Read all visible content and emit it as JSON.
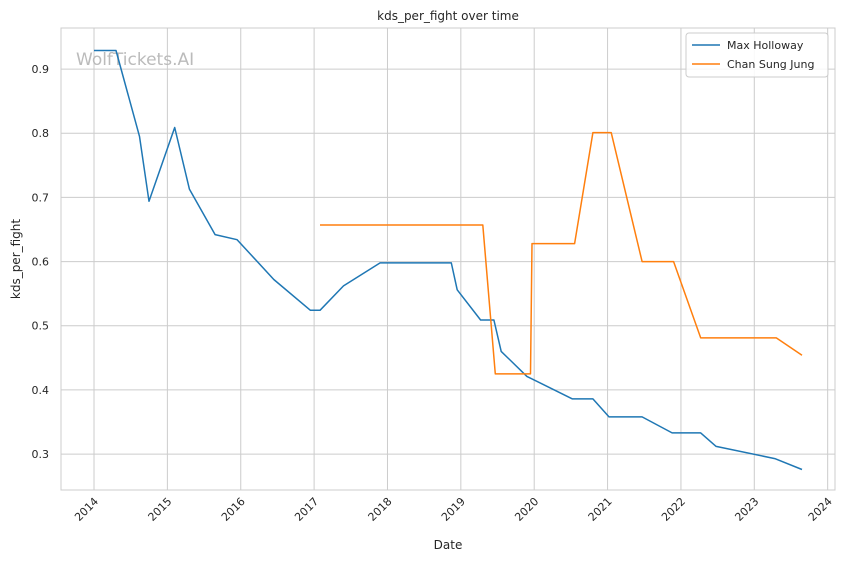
{
  "chart_data": {
    "type": "line",
    "title": "kds_per_fight over time",
    "xlabel": "Date",
    "ylabel": "kds_per_fight",
    "watermark": "WolfTickets.AI",
    "x_ticks": [
      "2014",
      "2015",
      "2016",
      "2017",
      "2018",
      "2019",
      "2020",
      "2021",
      "2022",
      "2023",
      "2024"
    ],
    "y_ticks": [
      "0.3",
      "0.4",
      "0.5",
      "0.6",
      "0.7",
      "0.8",
      "0.9"
    ],
    "xlim": [
      2013.55,
      2024.1
    ],
    "ylim": [
      0.244,
      0.964
    ],
    "grid": true,
    "legend_position": "top-right",
    "series": [
      {
        "name": "Max Holloway",
        "color": "#1f77b4",
        "points": [
          [
            2014.0,
            0.929
          ],
          [
            2014.3,
            0.929
          ],
          [
            2014.62,
            0.795
          ],
          [
            2014.75,
            0.694
          ],
          [
            2015.1,
            0.809
          ],
          [
            2015.3,
            0.713
          ],
          [
            2015.65,
            0.642
          ],
          [
            2015.95,
            0.634
          ],
          [
            2016.45,
            0.572
          ],
          [
            2016.95,
            0.524
          ],
          [
            2017.08,
            0.524
          ],
          [
            2017.4,
            0.562
          ],
          [
            2017.9,
            0.598
          ],
          [
            2018.87,
            0.598
          ],
          [
            2018.95,
            0.556
          ],
          [
            2019.27,
            0.509
          ],
          [
            2019.45,
            0.509
          ],
          [
            2019.55,
            0.46
          ],
          [
            2019.9,
            0.421
          ],
          [
            2020.52,
            0.386
          ],
          [
            2020.8,
            0.386
          ],
          [
            2021.02,
            0.358
          ],
          [
            2021.47,
            0.358
          ],
          [
            2021.88,
            0.333
          ],
          [
            2022.27,
            0.333
          ],
          [
            2022.48,
            0.312
          ],
          [
            2023.28,
            0.293
          ],
          [
            2023.65,
            0.276
          ]
        ]
      },
      {
        "name": "Chan Sung Jung",
        "color": "#ff7f0e",
        "points": [
          [
            2017.08,
            0.657
          ],
          [
            2019.3,
            0.657
          ],
          [
            2019.47,
            0.425
          ],
          [
            2019.95,
            0.425
          ],
          [
            2019.97,
            0.628
          ],
          [
            2020.55,
            0.628
          ],
          [
            2020.8,
            0.801
          ],
          [
            2021.05,
            0.801
          ],
          [
            2021.47,
            0.6
          ],
          [
            2021.9,
            0.6
          ],
          [
            2022.27,
            0.481
          ],
          [
            2023.3,
            0.481
          ],
          [
            2023.65,
            0.454
          ]
        ]
      }
    ]
  }
}
